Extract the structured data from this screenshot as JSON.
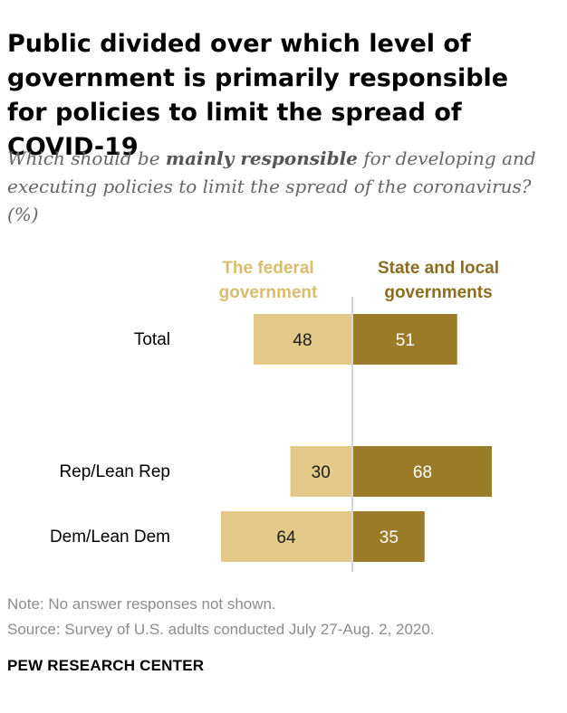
{
  "title": "Public divided over which level of government is primarily responsible for policies to limit the spread of COVID-19",
  "subtitle": {
    "before": "Which should be ",
    "emphasis": "mainly responsible",
    "after": " for developing and executing policies to limit the spread of the coronavirus? (%)"
  },
  "colors": {
    "federal": "#e2c988",
    "state_local": "#9a7b27",
    "federal_label": "#d9bd6f",
    "state_label": "#8a6d1f"
  },
  "chart_data": {
    "type": "bar",
    "orientation": "horizontal",
    "layout": "diverging",
    "categories": [
      "Total",
      "Rep/Lean Rep",
      "Dem/Lean Dem"
    ],
    "series": [
      {
        "name": "The federal government",
        "values": [
          48,
          30,
          64
        ]
      },
      {
        "name": "State and local governments",
        "values": [
          51,
          68,
          35
        ]
      }
    ],
    "series_labels": [
      [
        "The federal",
        "government"
      ],
      [
        "State and local",
        "governments"
      ]
    ],
    "xlim": [
      0,
      100
    ],
    "grid": false
  },
  "footer": {
    "note": "Note: No answer responses not shown.",
    "source": "Source: Survey of U.S. adults conducted July 27-Aug. 2, 2020.",
    "brand": "PEW RESEARCH CENTER"
  }
}
